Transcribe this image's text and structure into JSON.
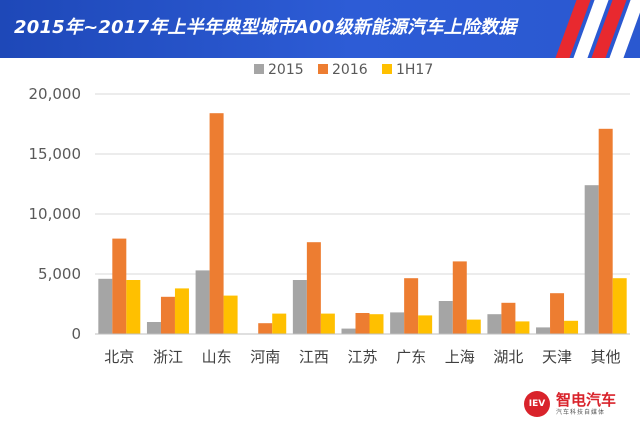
{
  "header": {
    "title": "2015年~2017年上半年典型城市A00级新能源汽车上险数据"
  },
  "colors": {
    "header_bg": "#2a56cc",
    "stripes": [
      "#e8292f",
      "#ffffff",
      "#e8292f",
      "#ffffff"
    ],
    "series": [
      "#a5a5a5",
      "#ed7d31",
      "#ffc000"
    ]
  },
  "chart_data": {
    "type": "bar",
    "categories": [
      "北京",
      "浙江",
      "山东",
      "河南",
      "江西",
      "江苏",
      "广东",
      "上海",
      "湖北",
      "天津",
      "其他"
    ],
    "series": [
      {
        "name": "2015",
        "values": [
          4600,
          1000,
          5300,
          0,
          4500,
          450,
          1800,
          2750,
          1650,
          550,
          12400
        ]
      },
      {
        "name": "2016",
        "values": [
          7950,
          3100,
          18400,
          900,
          7650,
          1750,
          4650,
          6050,
          2600,
          3400,
          17100
        ]
      },
      {
        "name": "1H17",
        "values": [
          4500,
          3800,
          3200,
          1700,
          1700,
          1650,
          1550,
          1200,
          1050,
          1100,
          4650
        ]
      }
    ],
    "yticks": [
      "0",
      "5,000",
      "10,000",
      "15,000",
      "20,000"
    ],
    "ylim": [
      0,
      20000
    ],
    "grid": true,
    "legend_position": "top"
  },
  "logo": {
    "badge": "IEV",
    "brand": "智电汽车",
    "sub": "汽车科技自媒体"
  }
}
